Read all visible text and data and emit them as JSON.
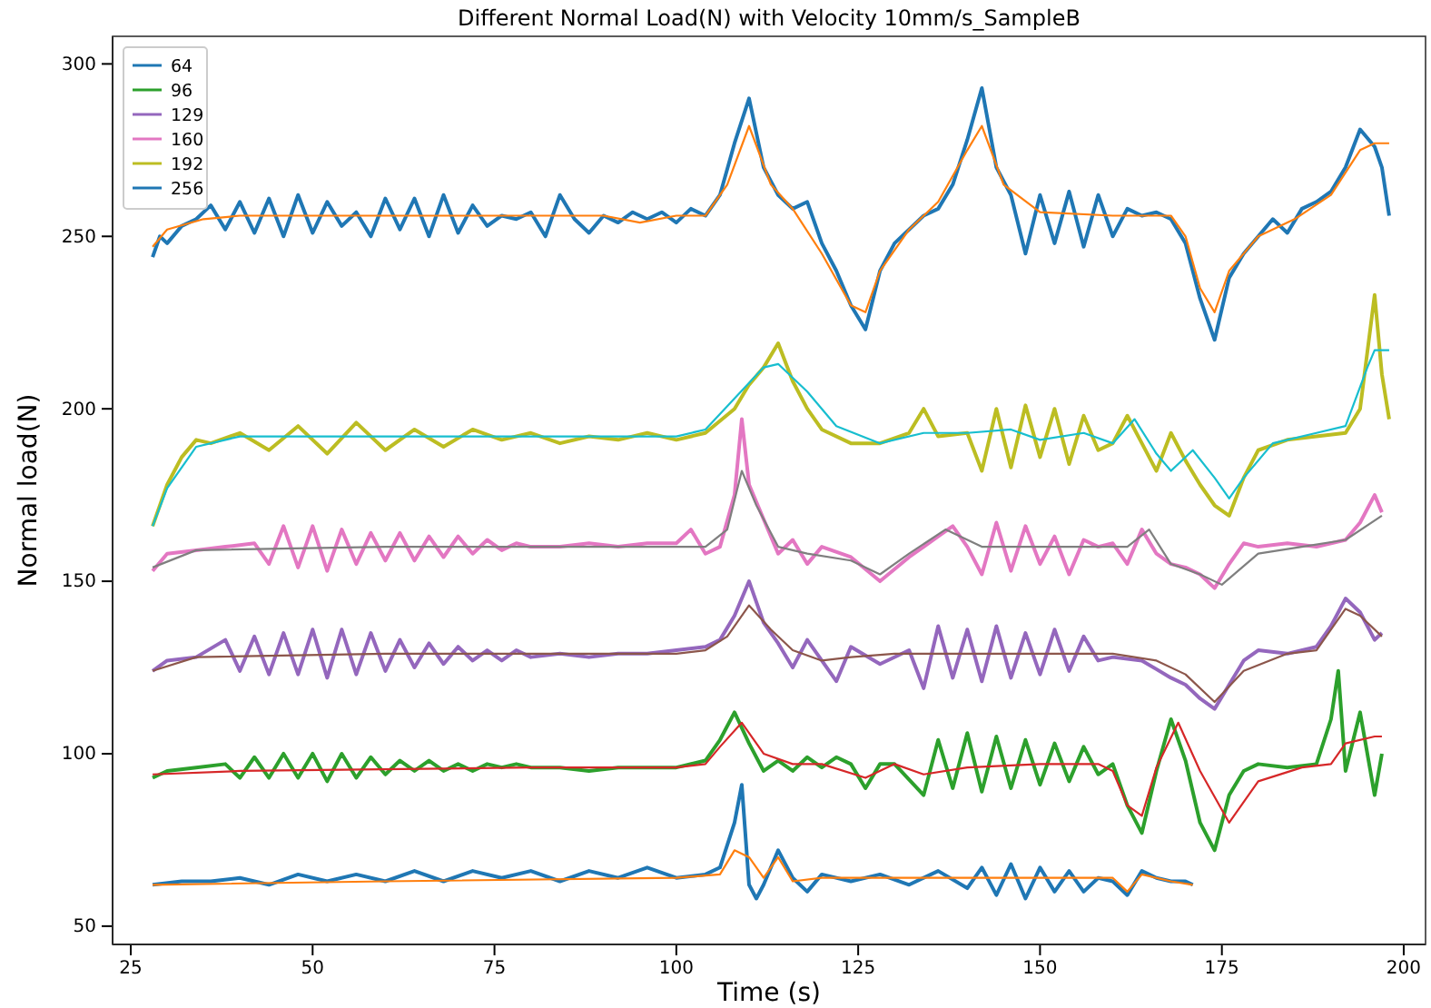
{
  "chart_data": {
    "type": "line",
    "title": "Different Normal Load(N) with Velocity 10mm/s_SampleB",
    "xlabel": "Time (s)",
    "ylabel": "Normal load(N)",
    "xlim": [
      22.5,
      203
    ],
    "ylim": [
      44.7,
      308
    ],
    "xticks": [
      25,
      50,
      75,
      100,
      125,
      150,
      175,
      200
    ],
    "yticks": [
      50,
      100,
      150,
      200,
      250,
      300
    ],
    "legend": "top left",
    "series": [
      {
        "name": "64",
        "color": "#1f77b4",
        "x": [
          28,
          32,
          36,
          40,
          44,
          48,
          52,
          56,
          60,
          64,
          68,
          72,
          76,
          80,
          84,
          88,
          92,
          96,
          100,
          104,
          106,
          108,
          109,
          110,
          111,
          112,
          114,
          116,
          118,
          120,
          124,
          128,
          132,
          136,
          140,
          142,
          144,
          146,
          148,
          150,
          152,
          154,
          156,
          158,
          160,
          162,
          164,
          166,
          168,
          170,
          171
        ],
        "values": [
          62,
          63,
          63,
          64,
          62,
          65,
          63,
          65,
          63,
          66,
          63,
          66,
          64,
          66,
          63,
          66,
          64,
          67,
          64,
          65,
          67,
          80,
          91,
          62,
          58,
          62,
          72,
          64,
          60,
          65,
          63,
          65,
          62,
          66,
          61,
          67,
          59,
          68,
          58,
          67,
          60,
          66,
          60,
          64,
          63,
          59,
          66,
          64,
          63,
          63,
          62
        ]
      },
      {
        "color": "#ff7f0e",
        "x": [
          28,
          60,
          100,
          106,
          108,
          110,
          112,
          114,
          116,
          120,
          130,
          150,
          160,
          162,
          164,
          168,
          171
        ],
        "values": [
          62,
          63,
          64,
          65,
          72,
          70,
          64,
          70,
          63,
          64,
          64,
          64,
          64,
          60,
          65,
          63,
          62
        ]
      },
      {
        "name": "96",
        "color": "#2ca02c",
        "x": [
          28,
          30,
          34,
          38,
          40,
          42,
          44,
          46,
          48,
          50,
          52,
          54,
          56,
          58,
          60,
          62,
          64,
          66,
          68,
          70,
          72,
          74,
          76,
          78,
          80,
          84,
          88,
          92,
          96,
          100,
          104,
          106,
          108,
          110,
          112,
          114,
          116,
          118,
          120,
          122,
          124,
          126,
          128,
          130,
          134,
          136,
          138,
          140,
          142,
          144,
          146,
          148,
          150,
          152,
          154,
          156,
          158,
          160,
          162,
          164,
          166,
          168,
          170,
          172,
          174,
          176,
          178,
          180,
          184,
          188,
          190,
          191,
          192,
          194,
          196,
          197
        ],
        "values": [
          93,
          95,
          96,
          97,
          93,
          99,
          93,
          100,
          93,
          100,
          92,
          100,
          93,
          99,
          94,
          98,
          95,
          98,
          95,
          97,
          95,
          97,
          96,
          97,
          96,
          96,
          95,
          96,
          96,
          96,
          98,
          104,
          112,
          103,
          95,
          98,
          95,
          99,
          96,
          99,
          97,
          90,
          97,
          97,
          88,
          104,
          90,
          106,
          89,
          105,
          90,
          104,
          91,
          103,
          92,
          102,
          94,
          97,
          85,
          77,
          95,
          110,
          98,
          80,
          72,
          88,
          95,
          97,
          96,
          97,
          110,
          124,
          95,
          112,
          88,
          100
        ]
      },
      {
        "color": "#d62728",
        "x": [
          28,
          40,
          80,
          100,
          104,
          106,
          109,
          112,
          116,
          120,
          126,
          130,
          134,
          140,
          150,
          158,
          160,
          162,
          164,
          166,
          169,
          172,
          176,
          180,
          186,
          190,
          192,
          196,
          197
        ],
        "values": [
          94,
          95,
          96,
          96,
          97,
          102,
          109,
          100,
          97,
          97,
          93,
          97,
          94,
          96,
          97,
          97,
          95,
          85,
          82,
          96,
          109,
          95,
          80,
          92,
          96,
          97,
          103,
          105,
          105
        ]
      },
      {
        "name": "129",
        "color": "#9467bd",
        "x": [
          28,
          30,
          34,
          38,
          40,
          42,
          44,
          46,
          48,
          50,
          52,
          54,
          56,
          58,
          60,
          62,
          64,
          66,
          68,
          70,
          72,
          74,
          76,
          78,
          80,
          84,
          88,
          92,
          96,
          100,
          104,
          106,
          108,
          110,
          112,
          114,
          116,
          118,
          120,
          122,
          124,
          128,
          132,
          134,
          136,
          138,
          140,
          142,
          144,
          146,
          148,
          150,
          152,
          154,
          156,
          158,
          160,
          164,
          168,
          170,
          172,
          174,
          176,
          178,
          180,
          184,
          188,
          190,
          192,
          194,
          196,
          197
        ],
        "values": [
          124,
          127,
          128,
          133,
          124,
          134,
          123,
          135,
          123,
          136,
          122,
          136,
          123,
          135,
          124,
          133,
          125,
          132,
          126,
          131,
          127,
          130,
          127,
          130,
          128,
          129,
          128,
          129,
          129,
          130,
          131,
          133,
          140,
          150,
          138,
          132,
          125,
          133,
          127,
          121,
          131,
          126,
          130,
          119,
          137,
          122,
          136,
          121,
          137,
          122,
          135,
          123,
          136,
          124,
          134,
          127,
          128,
          127,
          122,
          120,
          116,
          113,
          120,
          127,
          130,
          129,
          131,
          137,
          145,
          141,
          133,
          135
        ]
      },
      {
        "color": "#8c564b",
        "x": [
          28,
          34,
          60,
          100,
          104,
          107,
          110,
          113,
          116,
          120,
          124,
          130,
          140,
          150,
          160,
          166,
          170,
          174,
          178,
          184,
          188,
          192,
          194,
          197
        ],
        "values": [
          124,
          128,
          129,
          129,
          130,
          134,
          143,
          136,
          130,
          127,
          128,
          129,
          129,
          129,
          129,
          127,
          123,
          115,
          124,
          129,
          130,
          142,
          140,
          134
        ]
      },
      {
        "name": "160",
        "color": "#e377c2",
        "x": [
          28,
          30,
          34,
          38,
          42,
          44,
          46,
          48,
          50,
          52,
          54,
          56,
          58,
          60,
          62,
          64,
          66,
          68,
          70,
          72,
          74,
          76,
          78,
          80,
          84,
          88,
          92,
          96,
          100,
          102,
          104,
          106,
          108,
          109,
          110,
          112,
          114,
          116,
          118,
          120,
          124,
          128,
          132,
          136,
          138,
          140,
          142,
          144,
          146,
          148,
          150,
          152,
          154,
          156,
          158,
          160,
          162,
          164,
          166,
          168,
          170,
          172,
          174,
          176,
          178,
          180,
          184,
          188,
          192,
          194,
          196,
          197
        ],
        "values": [
          153,
          158,
          159,
          160,
          161,
          155,
          166,
          154,
          166,
          153,
          165,
          155,
          164,
          156,
          164,
          156,
          163,
          157,
          163,
          158,
          162,
          159,
          161,
          160,
          160,
          161,
          160,
          161,
          161,
          165,
          158,
          160,
          175,
          197,
          178,
          168,
          158,
          162,
          155,
          160,
          157,
          150,
          157,
          163,
          166,
          160,
          152,
          167,
          153,
          166,
          155,
          163,
          152,
          162,
          160,
          161,
          155,
          165,
          158,
          155,
          154,
          152,
          148,
          155,
          161,
          160,
          161,
          160,
          162,
          167,
          175,
          170
        ]
      },
      {
        "color": "#7f7f7f",
        "x": [
          28,
          34,
          60,
          100,
          104,
          107,
          109,
          111,
          114,
          118,
          124,
          128,
          132,
          137,
          142,
          150,
          158,
          162,
          165,
          168,
          172,
          175,
          180,
          186,
          192,
          197
        ],
        "values": [
          154,
          159,
          160,
          160,
          160,
          165,
          182,
          172,
          160,
          158,
          156,
          152,
          158,
          165,
          160,
          160,
          160,
          160,
          165,
          155,
          152,
          149,
          158,
          160,
          162,
          169
        ]
      },
      {
        "name": "192",
        "color": "#bcbd22",
        "x": [
          28,
          30,
          32,
          34,
          36,
          40,
          44,
          48,
          52,
          56,
          60,
          64,
          68,
          72,
          76,
          80,
          84,
          88,
          92,
          96,
          100,
          104,
          108,
          110,
          112,
          114,
          116,
          118,
          120,
          124,
          128,
          132,
          134,
          136,
          140,
          142,
          144,
          146,
          148,
          150,
          152,
          154,
          156,
          158,
          160,
          162,
          164,
          166,
          168,
          170,
          172,
          174,
          176,
          178,
          180,
          184,
          188,
          192,
          194,
          196,
          197,
          198
        ],
        "values": [
          166,
          178,
          186,
          191,
          190,
          193,
          188,
          195,
          187,
          196,
          188,
          194,
          189,
          194,
          191,
          193,
          190,
          192,
          191,
          193,
          191,
          193,
          200,
          207,
          212,
          219,
          208,
          200,
          194,
          190,
          190,
          193,
          200,
          192,
          193,
          182,
          200,
          183,
          201,
          186,
          200,
          184,
          198,
          188,
          190,
          198,
          190,
          182,
          193,
          185,
          178,
          172,
          169,
          180,
          188,
          191,
          192,
          193,
          200,
          233,
          210,
          197
        ]
      },
      {
        "color": "#17becf",
        "x": [
          28,
          30,
          34,
          40,
          60,
          80,
          100,
          104,
          108,
          112,
          114,
          118,
          122,
          128,
          134,
          140,
          146,
          150,
          156,
          160,
          163,
          166,
          168,
          171,
          174,
          176,
          178,
          182,
          188,
          192,
          195,
          196,
          198
        ],
        "values": [
          166,
          177,
          189,
          192,
          192,
          192,
          192,
          194,
          203,
          212,
          213,
          205,
          195,
          190,
          193,
          193,
          194,
          191,
          193,
          190,
          197,
          187,
          182,
          188,
          180,
          174,
          180,
          190,
          193,
          195,
          212,
          217,
          217
        ]
      },
      {
        "name": "256",
        "color": "#1f77b4",
        "x": [
          28,
          29,
          30,
          32,
          34,
          36,
          38,
          40,
          42,
          44,
          46,
          48,
          50,
          52,
          54,
          56,
          58,
          60,
          62,
          64,
          66,
          68,
          70,
          72,
          74,
          76,
          78,
          80,
          82,
          84,
          86,
          88,
          90,
          92,
          94,
          96,
          98,
          100,
          102,
          104,
          106,
          108,
          110,
          112,
          114,
          116,
          118,
          120,
          122,
          124,
          126,
          128,
          130,
          132,
          134,
          136,
          138,
          140,
          142,
          144,
          146,
          148,
          150,
          152,
          154,
          156,
          158,
          160,
          162,
          164,
          166,
          168,
          170,
          172,
          174,
          176,
          178,
          180,
          182,
          184,
          186,
          188,
          190,
          192,
          194,
          196,
          197,
          198
        ],
        "values": [
          244,
          250,
          248,
          253,
          255,
          259,
          252,
          260,
          251,
          261,
          250,
          262,
          251,
          260,
          253,
          257,
          250,
          261,
          252,
          261,
          250,
          262,
          251,
          259,
          253,
          256,
          255,
          257,
          250,
          262,
          255,
          251,
          256,
          254,
          257,
          255,
          257,
          254,
          258,
          256,
          262,
          277,
          290,
          270,
          262,
          258,
          260,
          248,
          240,
          230,
          223,
          240,
          248,
          252,
          256,
          258,
          265,
          278,
          293,
          270,
          262,
          245,
          262,
          248,
          263,
          247,
          262,
          250,
          258,
          256,
          257,
          255,
          248,
          232,
          220,
          238,
          245,
          250,
          255,
          251,
          258,
          260,
          263,
          270,
          281,
          276,
          270,
          256
        ]
      },
      {
        "color": "#ff7f0e",
        "x": [
          28,
          30,
          35,
          40,
          50,
          60,
          70,
          80,
          90,
          95,
          100,
          104,
          107,
          110,
          113,
          116,
          120,
          124,
          126,
          128,
          132,
          136,
          140,
          142,
          145,
          150,
          160,
          168,
          170,
          172,
          174,
          176,
          180,
          185,
          190,
          194,
          196,
          198
        ],
        "values": [
          247,
          252,
          255,
          256,
          256,
          256,
          256,
          256,
          256,
          254,
          256,
          256,
          265,
          282,
          265,
          258,
          245,
          230,
          228,
          240,
          252,
          260,
          275,
          282,
          265,
          257,
          256,
          256,
          250,
          235,
          228,
          240,
          250,
          255,
          262,
          275,
          277,
          277
        ]
      }
    ]
  }
}
